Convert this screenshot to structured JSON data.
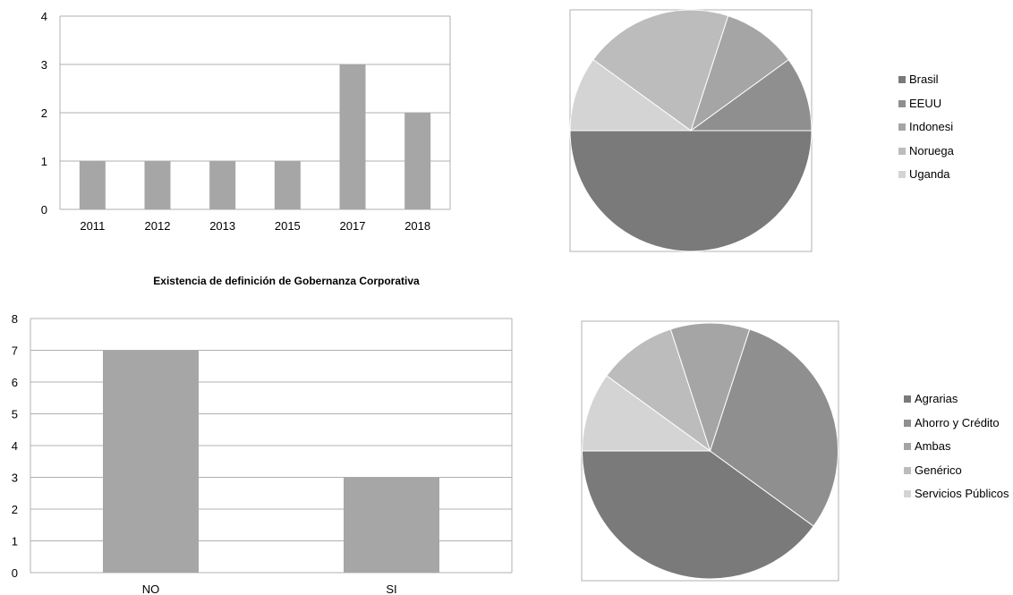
{
  "chart_data": [
    {
      "type": "bar",
      "title": "",
      "categories": [
        "2011",
        "2012",
        "2013",
        "2015",
        "2017",
        "2018"
      ],
      "values": [
        1,
        1,
        1,
        1,
        3,
        2
      ],
      "ylim": [
        0,
        4
      ],
      "yticks": [
        "0",
        "1",
        "2",
        "3",
        "4"
      ],
      "grid": true,
      "bar_color": "#a6a6a6"
    },
    {
      "type": "pie",
      "categories": [
        "Brasil",
        "EEUU",
        "Indonesi",
        "Noruega",
        "Uganda"
      ],
      "values": [
        5,
        1,
        1,
        2,
        1
      ],
      "colors": [
        "#7a7a7a",
        "#8f8f8f",
        "#a5a5a5",
        "#bcbcbc",
        "#d4d4d4"
      ],
      "legend": "right"
    },
    {
      "type": "bar",
      "title": "Existencia de definición de Gobernanza Corporativa",
      "categories": [
        "NO",
        "SI"
      ],
      "values": [
        7,
        3
      ],
      "ylim": [
        0,
        8
      ],
      "yticks": [
        "0",
        "1",
        "2",
        "3",
        "4",
        "5",
        "6",
        "7",
        "8"
      ],
      "grid": true,
      "bar_color": "#a6a6a6"
    },
    {
      "type": "pie",
      "categories": [
        "Agrarias",
        "Ahorro y Crédito",
        "Ambas",
        "Genérico",
        "Servicios Públicos"
      ],
      "values": [
        4,
        3,
        1,
        1,
        1
      ],
      "colors": [
        "#7a7a7a",
        "#8f8f8f",
        "#a5a5a5",
        "#bcbcbc",
        "#d4d4d4"
      ],
      "legend": "right"
    }
  ]
}
